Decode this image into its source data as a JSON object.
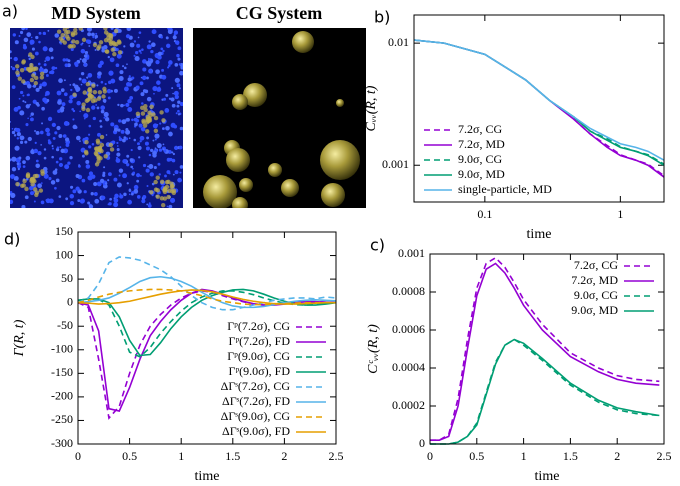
{
  "panel_label": "a)",
  "images": [
    {
      "title": "MD System"
    },
    {
      "title": "CG System"
    }
  ],
  "chart_data": [
    {
      "type": "line",
      "panel_label": "b)",
      "xlabel": "time",
      "ylabel": "Cᵥᵥ(R, t)",
      "xlog": true,
      "ylog": true,
      "grid": false,
      "legend": "lower left",
      "xlim": [
        0.03,
        2.1
      ],
      "ylim": [
        0.0005,
        0.017
      ],
      "xticks": [
        0.1,
        1
      ],
      "yticks": [
        0.001,
        0.01
      ],
      "x": [
        0.03,
        0.05,
        0.1,
        0.2,
        0.3,
        0.45,
        0.6,
        0.8,
        1,
        1.3,
        1.6,
        2.1
      ],
      "series": [
        {
          "name": "7.2σ, CG",
          "color": "#9400d3",
          "dashed": true,
          "values": [
            null,
            null,
            null,
            null,
            null,
            0.0024,
            0.0018,
            0.00145,
            0.00122,
            0.0011,
            0.00102,
            0.00082
          ]
        },
        {
          "name": "7.2σ, MD",
          "color": "#9400d3",
          "dashed": false,
          "values": [
            0.0106,
            0.01,
            0.0081,
            0.005,
            0.0034,
            0.0024,
            0.0018,
            0.0014,
            0.0012,
            0.0011,
            0.001,
            0.0008
          ]
        },
        {
          "name": "9.0σ, CG",
          "color": "#009e73",
          "dashed": true,
          "values": [
            null,
            null,
            null,
            null,
            null,
            0.0025,
            0.0019,
            0.00165,
            0.00142,
            0.0013,
            0.00122,
            0.00102
          ]
        },
        {
          "name": "9.0σ, MD",
          "color": "#009e73",
          "dashed": false,
          "values": [
            0.0106,
            0.01,
            0.0081,
            0.005,
            0.0034,
            0.0025,
            0.0019,
            0.0016,
            0.0014,
            0.0013,
            0.0012,
            0.001
          ]
        },
        {
          "name": "single-particle, MD",
          "color": "#56b4e9",
          "dashed": false,
          "values": [
            0.0106,
            0.01,
            0.0081,
            0.005,
            0.0034,
            0.0025,
            0.002,
            0.0017,
            0.0015,
            0.0014,
            0.0013,
            0.0011
          ]
        }
      ]
    },
    {
      "type": "line",
      "panel_label": "c)",
      "xlabel": "time",
      "ylabel": "Cᶜᵥᵥ(R, t)",
      "xlog": false,
      "ylog": false,
      "grid": false,
      "legend": "upper right",
      "xlim": [
        0,
        2.5
      ],
      "ylim": [
        0,
        0.001
      ],
      "xticks": [
        0,
        0.5,
        1,
        1.5,
        2,
        2.5
      ],
      "yticks": [
        0,
        0.0002,
        0.0004,
        0.0006,
        0.0008,
        0.001
      ],
      "x": [
        0,
        0.1,
        0.2,
        0.3,
        0.4,
        0.5,
        0.6,
        0.7,
        0.8,
        0.9,
        1,
        1.2,
        1.5,
        1.8,
        2,
        2.2,
        2.45
      ],
      "series": [
        {
          "name": "7.2σ, CG",
          "color": "#9400d3",
          "dashed": true,
          "values": [
            2e-05,
            2e-05,
            5e-05,
            0.00024,
            0.00055,
            0.00082,
            0.00095,
            0.00098,
            0.00093,
            0.00085,
            0.00076,
            0.00063,
            0.00048,
            0.0004,
            0.00036,
            0.00034,
            0.00033
          ]
        },
        {
          "name": "7.2σ, MD",
          "color": "#9400d3",
          "dashed": false,
          "values": [
            2e-05,
            2e-05,
            4e-05,
            0.0002,
            0.0005,
            0.00078,
            0.00092,
            0.00095,
            0.0009,
            0.00082,
            0.00073,
            0.0006,
            0.00046,
            0.00038,
            0.00034,
            0.00032,
            0.00031
          ]
        },
        {
          "name": "9.0σ, CG",
          "color": "#009e73",
          "dashed": true,
          "values": [
            0,
            0,
            0,
            1e-05,
            4e-05,
            0.00011,
            0.00027,
            0.00043,
            0.00052,
            0.00055,
            0.00052,
            0.00044,
            0.00031,
            0.00022,
            0.00018,
            0.00016,
            0.00015
          ]
        },
        {
          "name": "9.0σ, MD",
          "color": "#009e73",
          "dashed": false,
          "values": [
            0,
            0,
            0,
            1e-05,
            4e-05,
            0.0001,
            0.00026,
            0.00042,
            0.00052,
            0.00055,
            0.00053,
            0.00045,
            0.00032,
            0.00023,
            0.00019,
            0.00017,
            0.00015
          ]
        }
      ]
    },
    {
      "type": "line",
      "panel_label": "d)",
      "xlabel": "time",
      "ylabel": "Γ(R, t)",
      "xlog": false,
      "ylog": false,
      "grid": false,
      "legend": "lower right",
      "xlim": [
        0,
        2.5
      ],
      "ylim": [
        -300,
        150
      ],
      "xticks": [
        0,
        0.5,
        1,
        1.5,
        2,
        2.5
      ],
      "yticks": [
        -300,
        -250,
        -200,
        -150,
        -100,
        -50,
        0,
        50,
        100,
        150
      ],
      "x": [
        0,
        0.1,
        0.2,
        0.3,
        0.4,
        0.5,
        0.6,
        0.7,
        0.8,
        0.9,
        1,
        1.1,
        1.2,
        1.3,
        1.4,
        1.5,
        1.6,
        1.7,
        1.8,
        1.9,
        2,
        2.1,
        2.2,
        2.3,
        2.4,
        2.5
      ],
      "series": [
        {
          "name": "Γᵖ(7.2σ), CG",
          "color": "#9400d3",
          "dashed": true,
          "values": [
            0,
            -10,
            -120,
            -245,
            -220,
            -150,
            -90,
            -50,
            -25,
            -5,
            10,
            20,
            25,
            22,
            15,
            8,
            2,
            -3,
            -5,
            -4,
            -2,
            0,
            2,
            2,
            1,
            0
          ]
        },
        {
          "name": "Γᵖ(7.2σ), FD",
          "color": "#9400d3",
          "dashed": false,
          "values": [
            0,
            -5,
            -60,
            -225,
            -230,
            -180,
            -120,
            -70,
            -40,
            -15,
            5,
            20,
            28,
            25,
            18,
            10,
            3,
            -2,
            -5,
            -5,
            -3,
            0,
            2,
            2,
            1,
            0
          ]
        },
        {
          "name": "Γᵖ(9.0σ), CG",
          "color": "#009e73",
          "dashed": true,
          "values": [
            5,
            8,
            7,
            -5,
            -50,
            -105,
            -115,
            -95,
            -65,
            -40,
            -18,
            0,
            12,
            20,
            25,
            25,
            22,
            17,
            10,
            4,
            -1,
            -4,
            -5,
            -4,
            -2,
            0
          ]
        },
        {
          "name": "Γᵖ(9.0σ), FD",
          "color": "#009e73",
          "dashed": false,
          "values": [
            5,
            8,
            8,
            0,
            -30,
            -80,
            -112,
            -110,
            -85,
            -55,
            -30,
            -10,
            5,
            15,
            22,
            27,
            28,
            25,
            18,
            10,
            3,
            -2,
            -5,
            -5,
            -3,
            0
          ]
        },
        {
          "name": "ΔΓˢ(7.2σ), CG",
          "color": "#56b4e9",
          "dashed": true,
          "values": [
            0,
            10,
            40,
            85,
            97,
            95,
            90,
            80,
            70,
            55,
            35,
            15,
            0,
            -10,
            -15,
            -15,
            -10,
            -5,
            0,
            5,
            8,
            10,
            10,
            8,
            12,
            10
          ]
        },
        {
          "name": "ΔΓˢ(7.2σ), FD",
          "color": "#56b4e9",
          "dashed": false,
          "values": [
            0,
            2,
            5,
            10,
            20,
            32,
            45,
            53,
            55,
            52,
            45,
            35,
            22,
            10,
            0,
            -7,
            -10,
            -10,
            -8,
            -4,
            0,
            3,
            5,
            6,
            5,
            4
          ]
        },
        {
          "name": "ΔΓˢ(9.0σ), CG",
          "color": "#e69f00",
          "dashed": true,
          "values": [
            0,
            5,
            12,
            18,
            22,
            25,
            27,
            28,
            28,
            27,
            25,
            20,
            15,
            8,
            3,
            0,
            -3,
            -4,
            -4,
            -3,
            -2,
            -1,
            0,
            0,
            0,
            0
          ]
        },
        {
          "name": "ΔΓˢ(9.0σ), FD",
          "color": "#e69f00",
          "dashed": false,
          "values": [
            0,
            -1,
            -3,
            -2,
            0,
            3,
            8,
            13,
            18,
            22,
            25,
            27,
            26,
            23,
            18,
            12,
            7,
            3,
            0,
            -2,
            -3,
            -3,
            -2,
            -1,
            0,
            0
          ]
        }
      ]
    }
  ]
}
